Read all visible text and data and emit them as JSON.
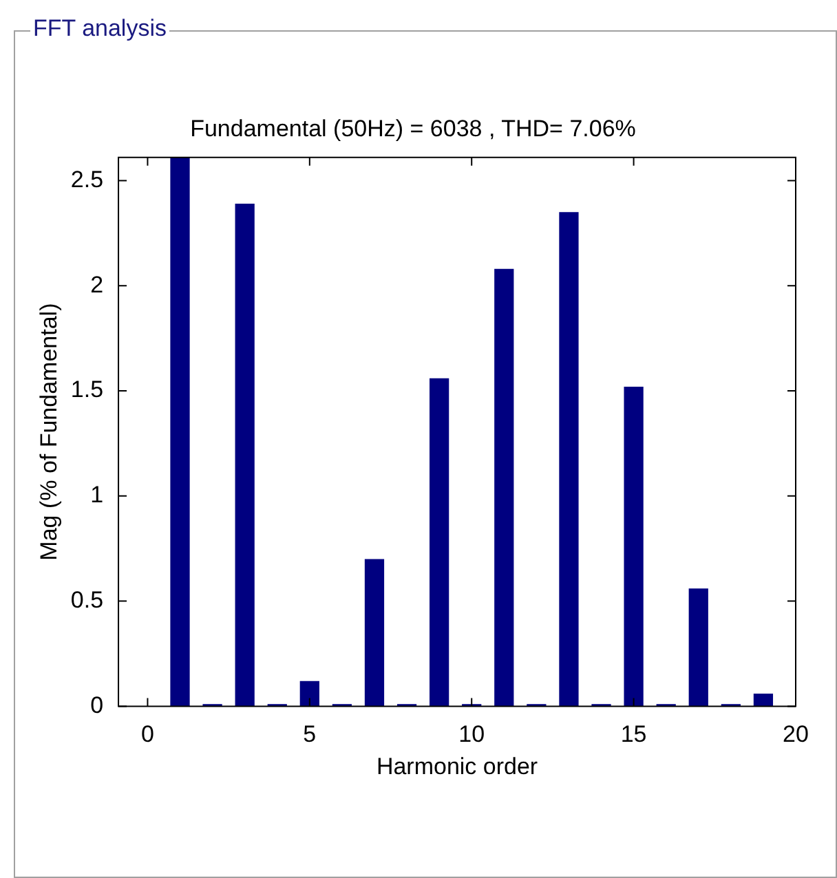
{
  "chart_data": {
    "type": "bar",
    "title": "FFT analysis",
    "subtitle": "Fundamental (50Hz) = 6038 , THD= 7.06%",
    "xlabel": "Harmonic order",
    "ylabel": "Mag (% of Fundamental)",
    "x": [
      0,
      1,
      2,
      3,
      4,
      5,
      6,
      7,
      8,
      9,
      10,
      11,
      12,
      13,
      14,
      15,
      16,
      17,
      18,
      19
    ],
    "values": [
      0,
      2.61,
      0.01,
      2.39,
      0.01,
      0.12,
      0.01,
      0.7,
      0.01,
      1.56,
      0.01,
      2.08,
      0.01,
      2.35,
      0.01,
      1.52,
      0.01,
      0.56,
      0.01,
      0.06
    ],
    "color": "#000080",
    "xlim": [
      -0.9,
      20
    ],
    "xticks": [
      0,
      5,
      10,
      15,
      20
    ],
    "ylim": [
      0,
      2.61
    ],
    "yticks": [
      0,
      0.5,
      1,
      1.5,
      2,
      2.5
    ]
  }
}
